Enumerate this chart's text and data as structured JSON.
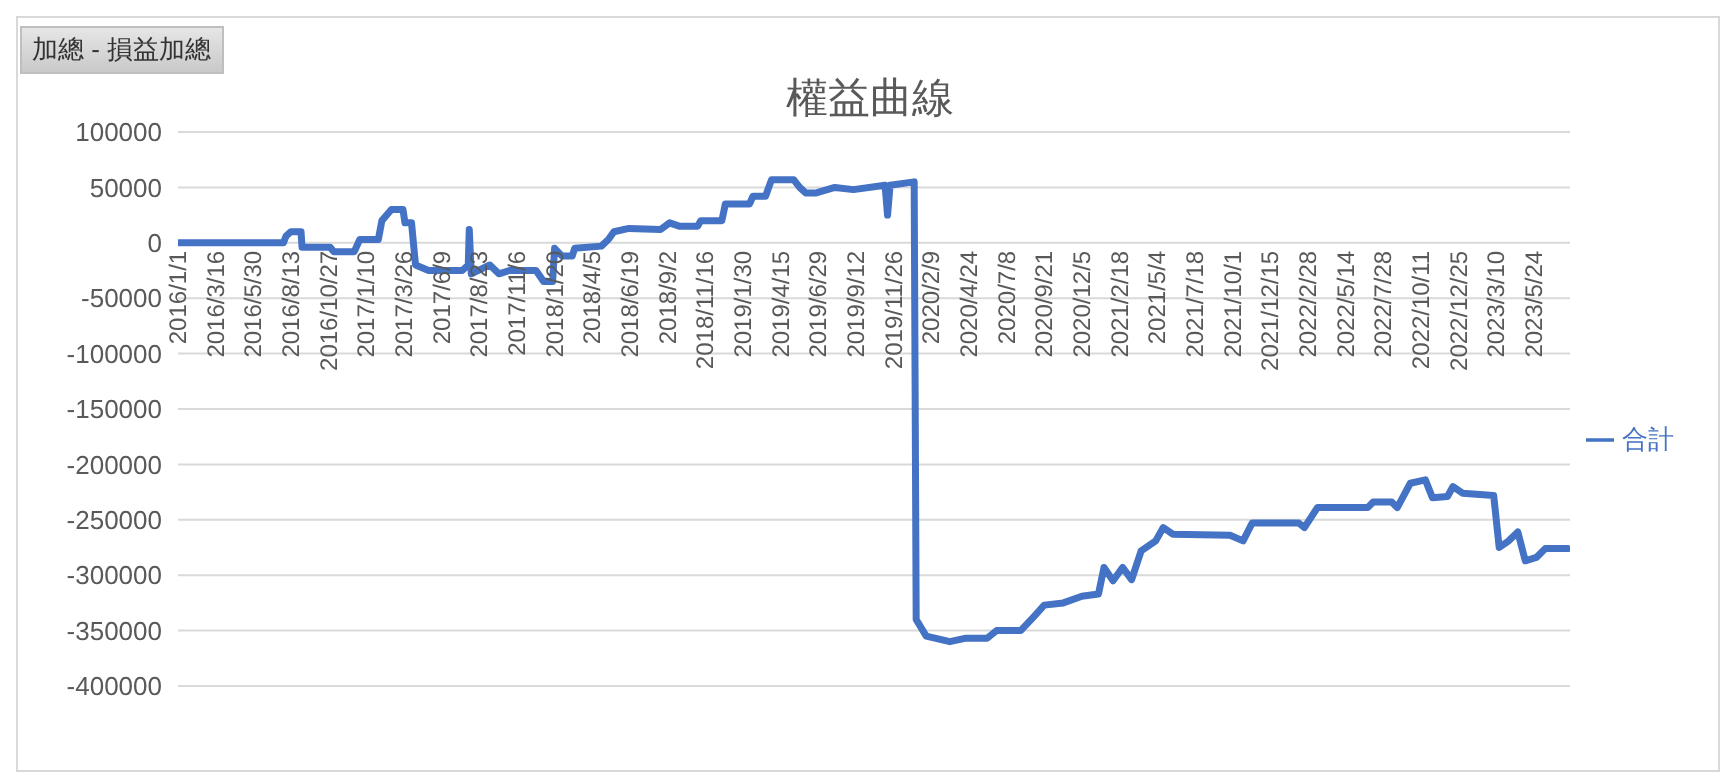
{
  "chart_data": {
    "type": "line",
    "title": "權益曲線",
    "annotations": [
      "加總 - 損益加總"
    ],
    "x": [
      "2016-01-01",
      "2016-07-29",
      "2016-08-03",
      "2016-08-13",
      "2016-09-02",
      "2016-09-04",
      "2016-10-30",
      "2016-11-06",
      "2016-12-17",
      "2016-12-28",
      "2017-02-03",
      "2017-02-10",
      "2017-03-01",
      "2017-03-24",
      "2017-03-28",
      "2017-04-10",
      "2017-04-18",
      "2017-05-14",
      "2017-07-20",
      "2017-08-01",
      "2017-08-03",
      "2017-08-07",
      "2017-09-13",
      "2017-10-01",
      "2017-10-22",
      "2017-12-14",
      "2017-12-29",
      "2018-01-16",
      "2018-01-20",
      "2018-02-04",
      "2018-02-24",
      "2018-03-01",
      "2018-04-23",
      "2018-05-07",
      "2018-05-18",
      "2018-06-17",
      "2018-08-19",
      "2018-09-06",
      "2018-09-25",
      "2018-11-01",
      "2018-11-07",
      "2018-12-19",
      "2018-12-26",
      "2019-02-12",
      "2019-02-19",
      "2019-03-16",
      "2019-03-28",
      "2019-05-11",
      "2019-05-23",
      "2019-06-04",
      "2019-06-25",
      "2019-08-01",
      "2019-09-07",
      "2019-11-09",
      "2019-11-14",
      "2019-11-19",
      "2020-01-06",
      "2020-01-10",
      "2020-01-30",
      "2020-03-17",
      "2020-04-16",
      "2020-05-30",
      "2020-06-18",
      "2020-08-05",
      "2020-08-30",
      "2020-09-21",
      "2020-10-29",
      "2020-12-05",
      "2021-01-07",
      "2021-01-18",
      "2021-02-05",
      "2021-02-24",
      "2021-03-14",
      "2021-04-02",
      "2021-05-01",
      "2021-05-16",
      "2021-06-04",
      "2021-09-26",
      "2021-10-22",
      "2021-11-09",
      "2022-02-10",
      "2022-02-21",
      "2022-03-19",
      "2022-06-27",
      "2022-07-08",
      "2022-08-14",
      "2022-08-25",
      "2022-09-20",
      "2022-10-20",
      "2022-11-03",
      "2022-12-03",
      "2022-12-14",
      "2023-01-02",
      "2023-03-05",
      "2023-03-16",
      "2023-04-04",
      "2023-04-22",
      "2023-05-07",
      "2023-05-29",
      "2023-06-16",
      "2023-07-31"
    ],
    "series": [
      {
        "name": "合計",
        "color": "#4472c4",
        "values": [
          0,
          0,
          6000,
          10000,
          10000,
          -4000,
          -4000,
          -8000,
          -8000,
          3000,
          3000,
          20000,
          30000,
          30000,
          18000,
          18000,
          -20000,
          -25000,
          -25000,
          -20000,
          12000,
          -28000,
          -20000,
          -28000,
          -25000,
          -25000,
          -35000,
          -35000,
          -5000,
          -12000,
          -12000,
          -5000,
          -3000,
          3000,
          10000,
          13000,
          12000,
          18000,
          15000,
          15000,
          20000,
          20000,
          35000,
          35000,
          42000,
          42000,
          57000,
          57000,
          50000,
          45000,
          45000,
          50000,
          48000,
          52000,
          25000,
          52000,
          55000,
          -340000,
          -355000,
          -360000,
          -357000,
          -357000,
          -350000,
          -350000,
          -338000,
          -327000,
          -325000,
          -319000,
          -317000,
          -293000,
          -305000,
          -293000,
          -304000,
          -278000,
          -269000,
          -257000,
          -263000,
          -264000,
          -269000,
          -253000,
          -253000,
          -257000,
          -239000,
          -239000,
          -234000,
          -234000,
          -239000,
          -217000,
          -214000,
          -230000,
          -229000,
          -220000,
          -226000,
          -228000,
          -275000,
          -269000,
          -261000,
          -287000,
          -284000,
          -276000,
          -276000
        ]
      }
    ],
    "xlim": [
      "2016-01-01",
      "2023-08-04"
    ],
    "xticks": [
      {
        "value": "2016-01-01",
        "label": "2016/1/1"
      },
      {
        "value": "2016-03-16",
        "label": "2016/3/16"
      },
      {
        "value": "2016-05-30",
        "label": "2016/5/30"
      },
      {
        "value": "2016-08-13",
        "label": "2016/8/13"
      },
      {
        "value": "2016-10-27",
        "label": "2016/10/27"
      },
      {
        "value": "2017-01-10",
        "label": "2017/1/10"
      },
      {
        "value": "2017-03-26",
        "label": "2017/3/26"
      },
      {
        "value": "2017-06-09",
        "label": "2017/6/9"
      },
      {
        "value": "2017-08-23",
        "label": "2017/8/23"
      },
      {
        "value": "2017-11-06",
        "label": "2017/11/6"
      },
      {
        "value": "2018-01-20",
        "label": "2018/1/20"
      },
      {
        "value": "2018-04-05",
        "label": "2018/4/5"
      },
      {
        "value": "2018-06-19",
        "label": "2018/6/19"
      },
      {
        "value": "2018-09-02",
        "label": "2018/9/2"
      },
      {
        "value": "2018-11-16",
        "label": "2018/11/16"
      },
      {
        "value": "2019-01-30",
        "label": "2019/1/30"
      },
      {
        "value": "2019-04-15",
        "label": "2019/4/15"
      },
      {
        "value": "2019-06-29",
        "label": "2019/6/29"
      },
      {
        "value": "2019-09-12",
        "label": "2019/9/12"
      },
      {
        "value": "2019-11-26",
        "label": "2019/11/26"
      },
      {
        "value": "2020-02-09",
        "label": "2020/2/9"
      },
      {
        "value": "2020-04-24",
        "label": "2020/4/24"
      },
      {
        "value": "2020-07-08",
        "label": "2020/7/8"
      },
      {
        "value": "2020-09-21",
        "label": "2020/9/21"
      },
      {
        "value": "2020-12-05",
        "label": "2020/12/5"
      },
      {
        "value": "2021-02-18",
        "label": "2021/2/18"
      },
      {
        "value": "2021-05-04",
        "label": "2021/5/4"
      },
      {
        "value": "2021-07-18",
        "label": "2021/7/18"
      },
      {
        "value": "2021-10-01",
        "label": "2021/10/1"
      },
      {
        "value": "2021-12-15",
        "label": "2021/12/15"
      },
      {
        "value": "2022-02-28",
        "label": "2022/2/28"
      },
      {
        "value": "2022-05-14",
        "label": "2022/5/14"
      },
      {
        "value": "2022-07-28",
        "label": "2022/7/28"
      },
      {
        "value": "2022-10-11",
        "label": "2022/10/11"
      },
      {
        "value": "2022-12-25",
        "label": "2022/12/25"
      },
      {
        "value": "2023-03-10",
        "label": "2023/3/10"
      },
      {
        "value": "2023-05-24",
        "label": "2023/5/24"
      }
    ],
    "ylim": [
      -400000,
      100000
    ],
    "yticks": [
      -400000,
      -350000,
      -300000,
      -250000,
      -200000,
      -150000,
      -100000,
      -50000,
      0,
      50000,
      100000
    ],
    "grid": "y",
    "legend": "right"
  }
}
